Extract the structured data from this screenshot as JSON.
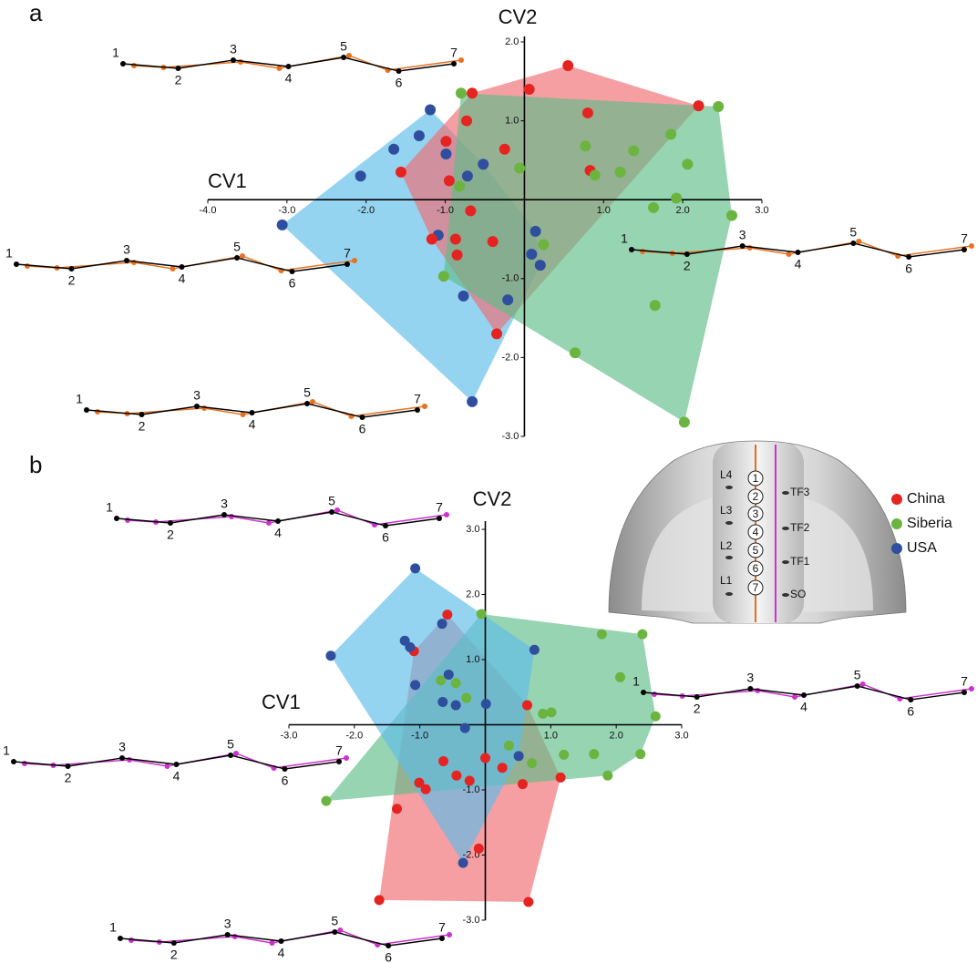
{
  "panel_labels": [
    "a",
    "b"
  ],
  "chart_data": [
    {
      "type": "scatter",
      "x_label": "CV1",
      "y_label": "CV2",
      "xlim": [
        -4,
        3
      ],
      "ylim": [
        -3,
        2
      ],
      "xticks": [
        {
          "value": -4,
          "label": "-4.0"
        },
        {
          "value": -3,
          "label": "-3.0"
        },
        {
          "value": -2,
          "label": "-2.0"
        },
        {
          "value": -1,
          "label": "-1.0"
        },
        {
          "value": 1,
          "label": "1.0"
        },
        {
          "value": 2,
          "label": "2.0"
        },
        {
          "value": 3,
          "label": "3.0"
        }
      ],
      "yticks": [
        {
          "value": 2,
          "label": "2.0"
        },
        {
          "value": 1,
          "label": "1.0"
        },
        {
          "value": -1,
          "label": "-1.0"
        },
        {
          "value": -2,
          "label": "-2.0"
        },
        {
          "value": -3,
          "label": "-3.0"
        }
      ],
      "series": [
        {
          "color": "#2f4e9e",
          "hull_color": "#5cbde9",
          "x": [
            -1.19,
            -1.33,
            -1.65,
            -0.99,
            -0.52,
            -0.72,
            -2.07,
            -3.06,
            -1.09,
            0.14,
            0.09,
            0.2,
            -0.77,
            -0.21,
            -0.66
          ],
          "values": [
            1.14,
            0.81,
            0.64,
            0.58,
            0.45,
            0.3,
            0.3,
            -0.32,
            -0.45,
            -0.4,
            -0.69,
            -0.83,
            -1.22,
            -1.27,
            -2.56
          ]
        },
        {
          "color": "#e52421",
          "hull_color": "#ef6b72",
          "x": [
            0.55,
            0.06,
            -0.66,
            2.2,
            -0.73,
            0.8,
            -0.99,
            -0.25,
            0.83,
            -1.56,
            -0.95,
            -0.68,
            -1.17,
            -0.87,
            -0.4,
            -0.85,
            -0.35
          ],
          "values": [
            1.7,
            1.4,
            1.35,
            1.19,
            1.0,
            1.1,
            0.74,
            0.64,
            0.37,
            0.35,
            0.24,
            -0.14,
            -0.5,
            -0.5,
            -0.53,
            -0.7,
            -1.7
          ]
        },
        {
          "color": "#6bb43f",
          "hull_color": "#5fbd88",
          "x": [
            -0.8,
            2.45,
            1.85,
            0.77,
            1.38,
            2.06,
            -0.06,
            0.89,
            1.21,
            -0.82,
            1.92,
            1.63,
            2.62,
            0.24,
            -1.02,
            1.65,
            0.64,
            2.02
          ],
          "values": [
            1.35,
            1.18,
            0.83,
            0.68,
            0.62,
            0.45,
            0.4,
            0.31,
            0.35,
            0.17,
            0.02,
            -0.1,
            -0.2,
            -0.57,
            -0.97,
            -1.34,
            -1.94,
            -2.82
          ]
        }
      ]
    },
    {
      "type": "scatter",
      "x_label": "CV1",
      "y_label": "CV2",
      "xlim": [
        -3,
        3
      ],
      "ylim": [
        -3,
        3
      ],
      "legend": true,
      "xticks": [
        {
          "value": -3,
          "label": "-3.0"
        },
        {
          "value": -2,
          "label": "-2.0"
        },
        {
          "value": -1,
          "label": "-1.0"
        },
        {
          "value": 1,
          "label": "1.0"
        },
        {
          "value": 2,
          "label": "2.0"
        },
        {
          "value": 3,
          "label": "3.0"
        }
      ],
      "yticks": [
        {
          "value": 3,
          "label": "3.0"
        },
        {
          "value": 2,
          "label": "2.0"
        },
        {
          "value": 1,
          "label": "1.0"
        },
        {
          "value": -1,
          "label": "-1.0"
        },
        {
          "value": -2,
          "label": "-2.0"
        },
        {
          "value": -3,
          "label": "-3.0"
        }
      ],
      "series": [
        {
          "name": "China",
          "color": "#e52421",
          "hull_color": "#ef6b72",
          "x": [
            -0.58,
            -1.09,
            0.64,
            -0.64,
            0.0,
            0.26,
            -0.44,
            -1.01,
            -0.91,
            -0.24,
            0.57,
            1.15,
            -1.35,
            -0.1,
            -1.62,
            0.66
          ],
          "values": [
            1.69,
            1.13,
            0.3,
            -0.56,
            -0.51,
            -0.66,
            -0.78,
            -0.89,
            -0.99,
            -0.86,
            -0.91,
            -0.81,
            -1.29,
            -1.9,
            -2.69,
            -2.72
          ]
        },
        {
          "name": "Siberia",
          "color": "#6bb43f",
          "hull_color": "#5fbd88",
          "x": [
            -0.06,
            1.78,
            2.4,
            2.06,
            -0.68,
            -0.45,
            -0.29,
            0.88,
            1.01,
            2.6,
            0.36,
            1.2,
            1.66,
            2.37,
            0.71,
            1.87,
            -2.43
          ],
          "values": [
            1.7,
            1.39,
            1.39,
            0.73,
            0.68,
            0.64,
            0.41,
            0.17,
            0.19,
            0.13,
            -0.32,
            -0.46,
            -0.45,
            -0.45,
            -0.59,
            -0.78,
            -1.17
          ]
        },
        {
          "name": "USA",
          "color": "#2f4e9e",
          "hull_color": "#5cbde9",
          "x": [
            -1.07,
            -0.66,
            -1.23,
            -1.15,
            -2.36,
            0.75,
            -1.07,
            -0.56,
            -0.65,
            -0.45,
            0.01,
            -0.31,
            0.51,
            -0.34
          ],
          "values": [
            2.4,
            1.55,
            1.29,
            1.19,
            1.06,
            1.15,
            0.61,
            0.77,
            0.35,
            0.3,
            0.32,
            -0.05,
            -0.48,
            -2.12
          ]
        }
      ]
    }
  ],
  "shape_diagrams": [
    {
      "labels": [
        "1",
        "2",
        "3",
        "4",
        "5",
        "6",
        "7"
      ],
      "colors": [
        "#000000",
        "#e8701f"
      ]
    },
    {
      "labels": [
        "1",
        "2",
        "3",
        "4",
        "5",
        "6",
        "7"
      ],
      "colors": [
        "#000000",
        "#e8701f"
      ]
    },
    {
      "labels": [
        "1",
        "2",
        "3",
        "4",
        "5",
        "6",
        "7"
      ],
      "colors": [
        "#000000",
        "#e8701f"
      ]
    },
    {
      "labels": [
        "1",
        "2",
        "3",
        "4",
        "5",
        "6",
        "7"
      ],
      "colors": [
        "#000000",
        "#e8701f"
      ]
    },
    {
      "labels": [
        "1",
        "2",
        "3",
        "4",
        "5",
        "6",
        "7"
      ],
      "colors": [
        "#000000",
        "#cc33cc"
      ]
    },
    {
      "labels": [
        "1",
        "2",
        "3",
        "4",
        "5",
        "6",
        "7"
      ],
      "colors": [
        "#000000",
        "#cc33cc"
      ]
    },
    {
      "labels": [
        "1",
        "2",
        "3",
        "4",
        "5",
        "6",
        "7"
      ],
      "colors": [
        "#000000",
        "#cc33cc"
      ]
    },
    {
      "labels": [
        "1",
        "2",
        "3",
        "4",
        "5",
        "6",
        "7"
      ],
      "colors": [
        "#000000",
        "#cc33cc"
      ]
    }
  ],
  "illustration": {
    "left_labels": [
      "L4",
      "L3",
      "L2",
      "L1"
    ],
    "right_labels": [
      "TF3",
      "TF2",
      "TF1",
      "SO"
    ],
    "landmarks": [
      "1",
      "2",
      "3",
      "4",
      "5",
      "6",
      "7"
    ]
  }
}
